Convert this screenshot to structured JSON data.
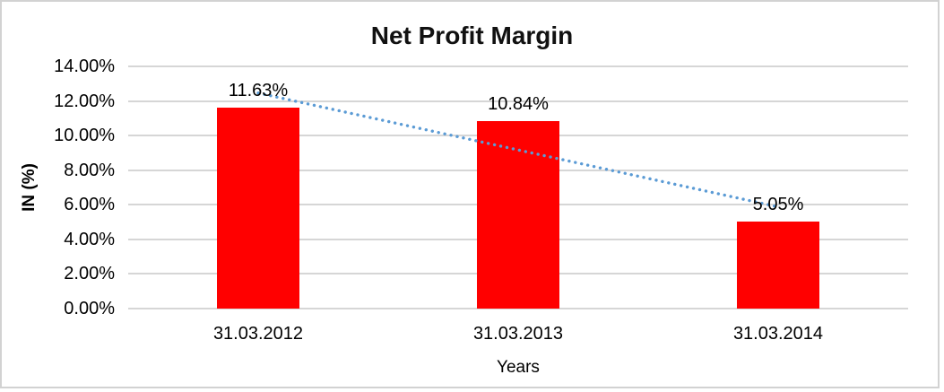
{
  "window": {
    "background": "#ffffff",
    "border_color": "#d2d2d2"
  },
  "chart_data": {
    "type": "bar",
    "title": "Net Profit Margin",
    "categories": [
      "31.03.2012",
      "31.03.2013",
      "31.03.2014"
    ],
    "values": [
      11.63,
      10.84,
      5.05
    ],
    "data_labels": [
      "11.63%",
      "10.84%",
      "5.05%"
    ],
    "xlabel": "Years",
    "ylabel": "IN (%)",
    "ylim": [
      0,
      14
    ],
    "yticks": [
      {
        "value": 0,
        "label": "0.00%"
      },
      {
        "value": 2,
        "label": "2.00%"
      },
      {
        "value": 4,
        "label": "4.00%"
      },
      {
        "value": 6,
        "label": "6.00%"
      },
      {
        "value": 8,
        "label": "8.00%"
      },
      {
        "value": 10,
        "label": "10.00%"
      },
      {
        "value": 12,
        "label": "12.00%"
      },
      {
        "value": 14,
        "label": "14.00%"
      }
    ],
    "grid": true,
    "legend_position": "none",
    "bar_color": "#ff0000",
    "gridline_color": "#d6d6d6",
    "trendline": {
      "type": "linear",
      "style": "dotted",
      "color": "#5b9bd5",
      "fitted_values": [
        12.46,
        9.17,
        5.88
      ]
    }
  }
}
